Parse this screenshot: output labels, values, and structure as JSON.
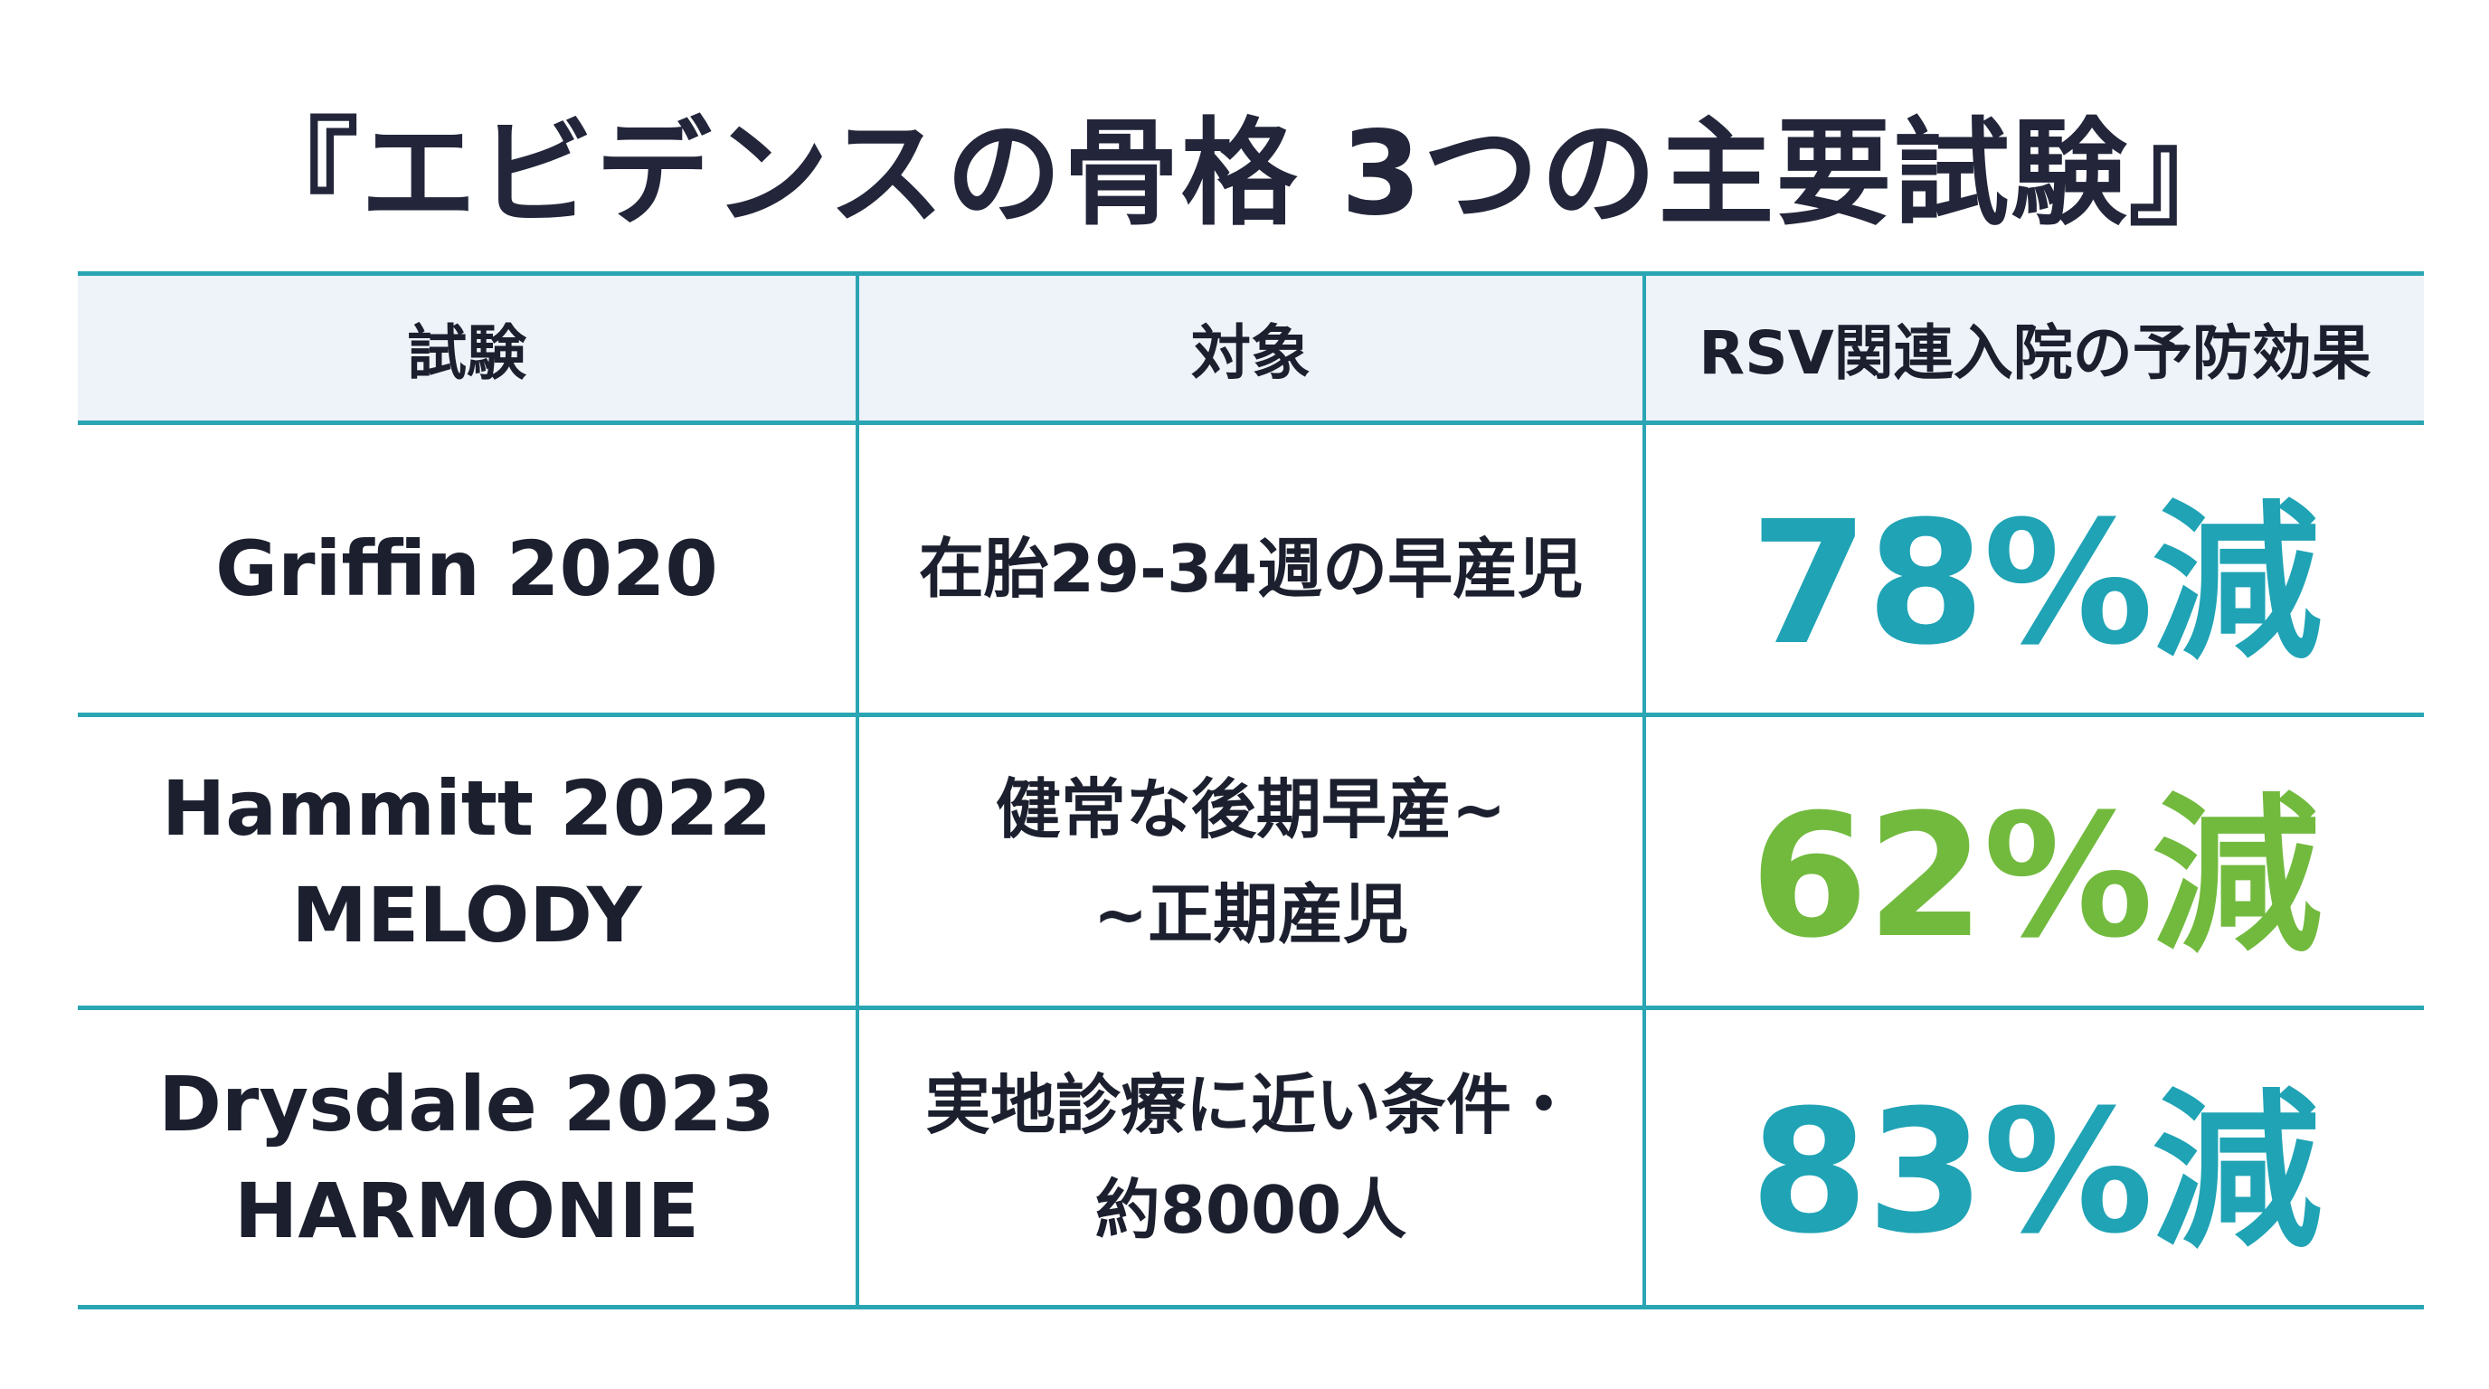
{
  "title": "『エビデンスの骨格 3つの主要試験』",
  "table": {
    "headers": [
      "試験",
      "対象",
      "RSV関連入院の予防効果"
    ],
    "rows": [
      {
        "trial_lines": [
          "Griffin 2020"
        ],
        "target_lines": [
          "在胎29-34週の早産児"
        ],
        "effect": "78%減",
        "effect_color": "#1fa3b5"
      },
      {
        "trial_lines": [
          "Hammitt 2022",
          "MELODY"
        ],
        "target_lines": [
          "健常な後期早産~",
          "~正期産児"
        ],
        "effect": "62%減",
        "effect_color": "#72ba3e"
      },
      {
        "trial_lines": [
          "Drysdale 2023",
          "HARMONIE"
        ],
        "target_lines": [
          "実地診療に近い条件・",
          "約8000人"
        ],
        "effect": "83%減",
        "effect_color": "#1fa3b5"
      }
    ]
  },
  "colors": {
    "grid_line": "#2aa5b3",
    "header_bg": "#eef2f9",
    "text": "#1b1f2e"
  }
}
